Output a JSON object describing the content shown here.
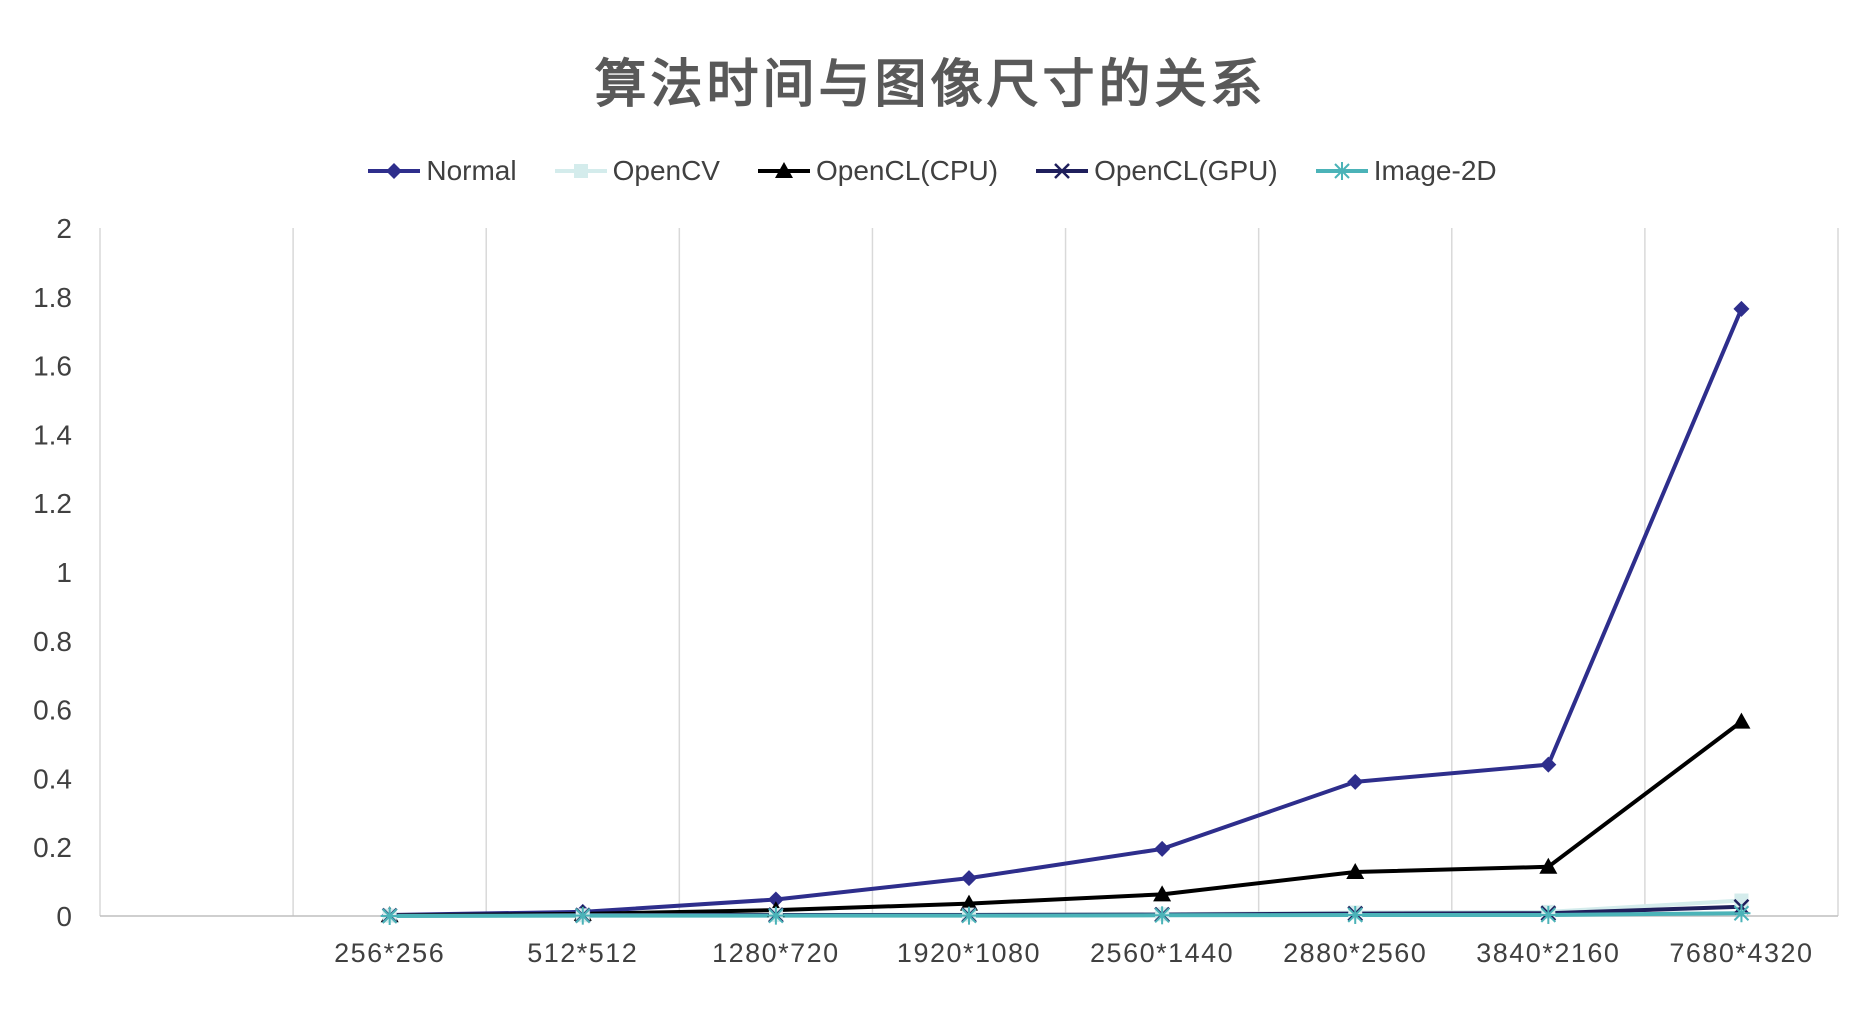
{
  "chart_data": {
    "type": "line",
    "title": "算法时间与图像尺寸的关系",
    "xlabel": "",
    "ylabel": "",
    "ylim": [
      0,
      2
    ],
    "yticks": [
      "0",
      "0.2",
      "0.4",
      "0.6",
      "0.8",
      "1",
      "1.2",
      "1.4",
      "1.6",
      "1.8",
      "2"
    ],
    "categories": [
      "",
      "256*256",
      "512*512",
      "1280*720",
      "1920*1080",
      "2560*1440",
      "2880*2560",
      "3840*2160",
      "7680*4320"
    ],
    "series": [
      {
        "name": "Normal",
        "color": "#2e2e8c",
        "marker": "diamond",
        "values": [
          null,
          0.003,
          0.012,
          0.048,
          0.11,
          0.195,
          0.39,
          0.44,
          1.765
        ]
      },
      {
        "name": "OpenCV",
        "color": "#d4ecec",
        "marker": "square",
        "values": [
          null,
          0.001,
          0.002,
          0.003,
          0.004,
          0.005,
          0.01,
          0.012,
          0.045
        ]
      },
      {
        "name": "OpenCL(CPU)",
        "color": "#000000",
        "marker": "triangle",
        "values": [
          null,
          0.002,
          0.006,
          0.017,
          0.036,
          0.063,
          0.128,
          0.143,
          0.565
        ]
      },
      {
        "name": "OpenCL(GPU)",
        "color": "#1f1f5c",
        "marker": "x",
        "values": [
          null,
          0.001,
          0.002,
          0.003,
          0.003,
          0.004,
          0.007,
          0.008,
          0.027
        ]
      },
      {
        "name": "Image-2D",
        "color": "#4bb3b8",
        "marker": "star",
        "values": [
          null,
          0.0,
          0.001,
          0.001,
          0.001,
          0.002,
          0.003,
          0.003,
          0.008
        ]
      }
    ],
    "grid": "vertical",
    "legend": "top"
  }
}
